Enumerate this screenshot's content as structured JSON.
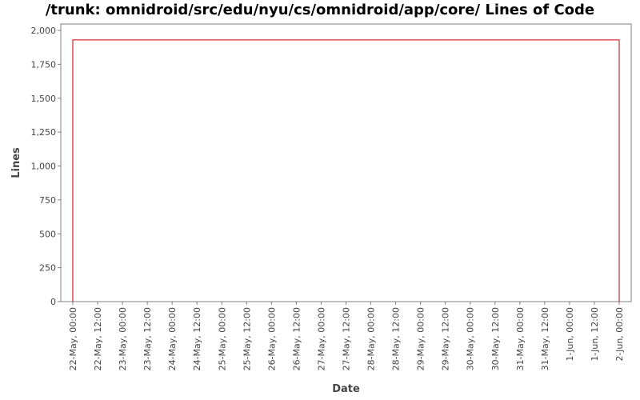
{
  "chart_data": {
    "type": "line",
    "title": "/trunk: omnidroid/src/edu/nyu/cs/omnidroid/app/core/ Lines of Code",
    "xlabel": "Date",
    "ylabel": "Lines",
    "ylim": [
      0,
      2000
    ],
    "y_ticks": [
      0,
      250,
      500,
      750,
      1000,
      1250,
      1500,
      1750,
      2000
    ],
    "y_tick_labels": [
      "0",
      "250",
      "500",
      "750",
      "1,000",
      "1,250",
      "1,500",
      "1,750",
      "2,000"
    ],
    "x_tick_labels": [
      "22-May, 00:00",
      "22-May, 12:00",
      "23-May, 00:00",
      "23-May, 12:00",
      "24-May, 00:00",
      "24-May, 12:00",
      "25-May, 00:00",
      "25-May, 12:00",
      "26-May, 00:00",
      "26-May, 12:00",
      "27-May, 00:00",
      "27-May, 12:00",
      "28-May, 00:00",
      "28-May, 12:00",
      "29-May, 00:00",
      "29-May, 12:00",
      "30-May, 00:00",
      "30-May, 12:00",
      "31-May, 00:00",
      "31-May, 12:00",
      "1-Jun, 00:00",
      "1-Jun, 12:00",
      "2-Jun, 00:00"
    ],
    "grid": false,
    "series": [
      {
        "color": "#cc0000",
        "points": [
          {
            "x": "22-May, 00:00",
            "y": 0
          },
          {
            "x": "22-May, 00:00",
            "y": 1930
          },
          {
            "x": "2-Jun, 00:00",
            "y": 1930
          },
          {
            "x": "2-Jun, 00:00",
            "y": 0
          }
        ]
      }
    ]
  }
}
